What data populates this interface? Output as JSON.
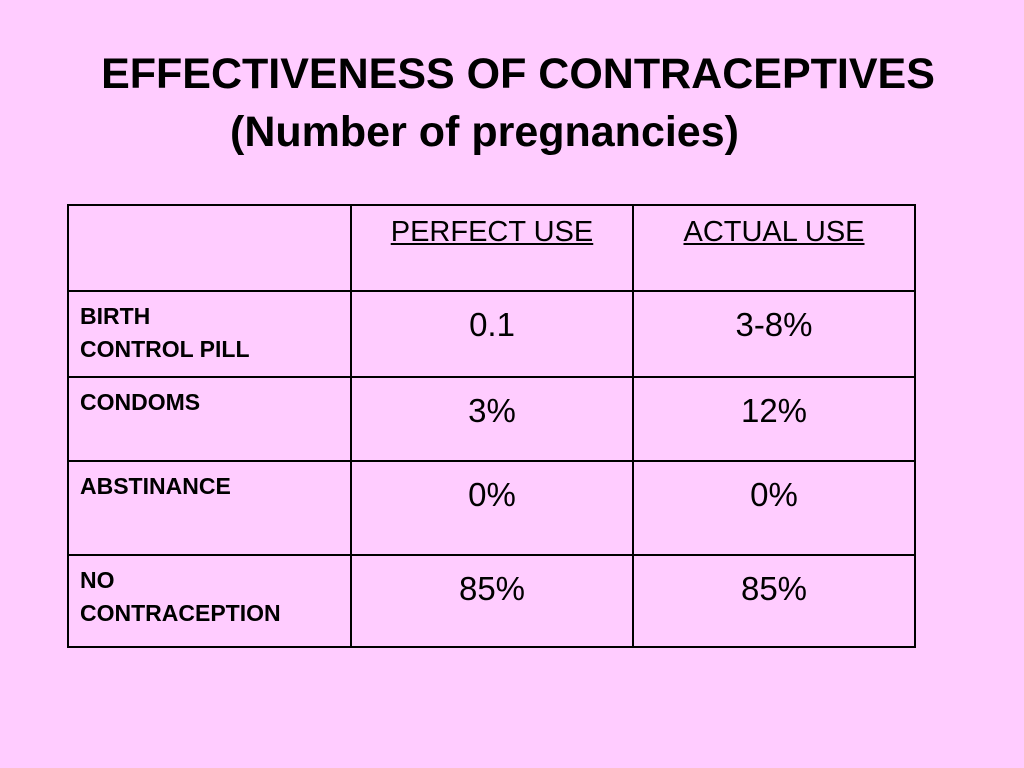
{
  "slide": {
    "title_line1": "EFFECTIVENESS OF CONTRACEPTIVES",
    "title_line2": "(Number of pregnancies)"
  },
  "table": {
    "headers": [
      "",
      "PERFECT USE",
      "ACTUAL USE"
    ],
    "rows": [
      {
        "label": "BIRTH\nCONTROL PILL",
        "perfect": "0.1",
        "actual": "3-8%"
      },
      {
        "label": "CONDOMS",
        "perfect": "3%",
        "actual": "12%"
      },
      {
        "label": "ABSTINANCE",
        "perfect": "0%",
        "actual": "0%"
      },
      {
        "label": "NO\nCONTRACEPTION",
        "perfect": "85%",
        "actual": "85%"
      }
    ]
  }
}
